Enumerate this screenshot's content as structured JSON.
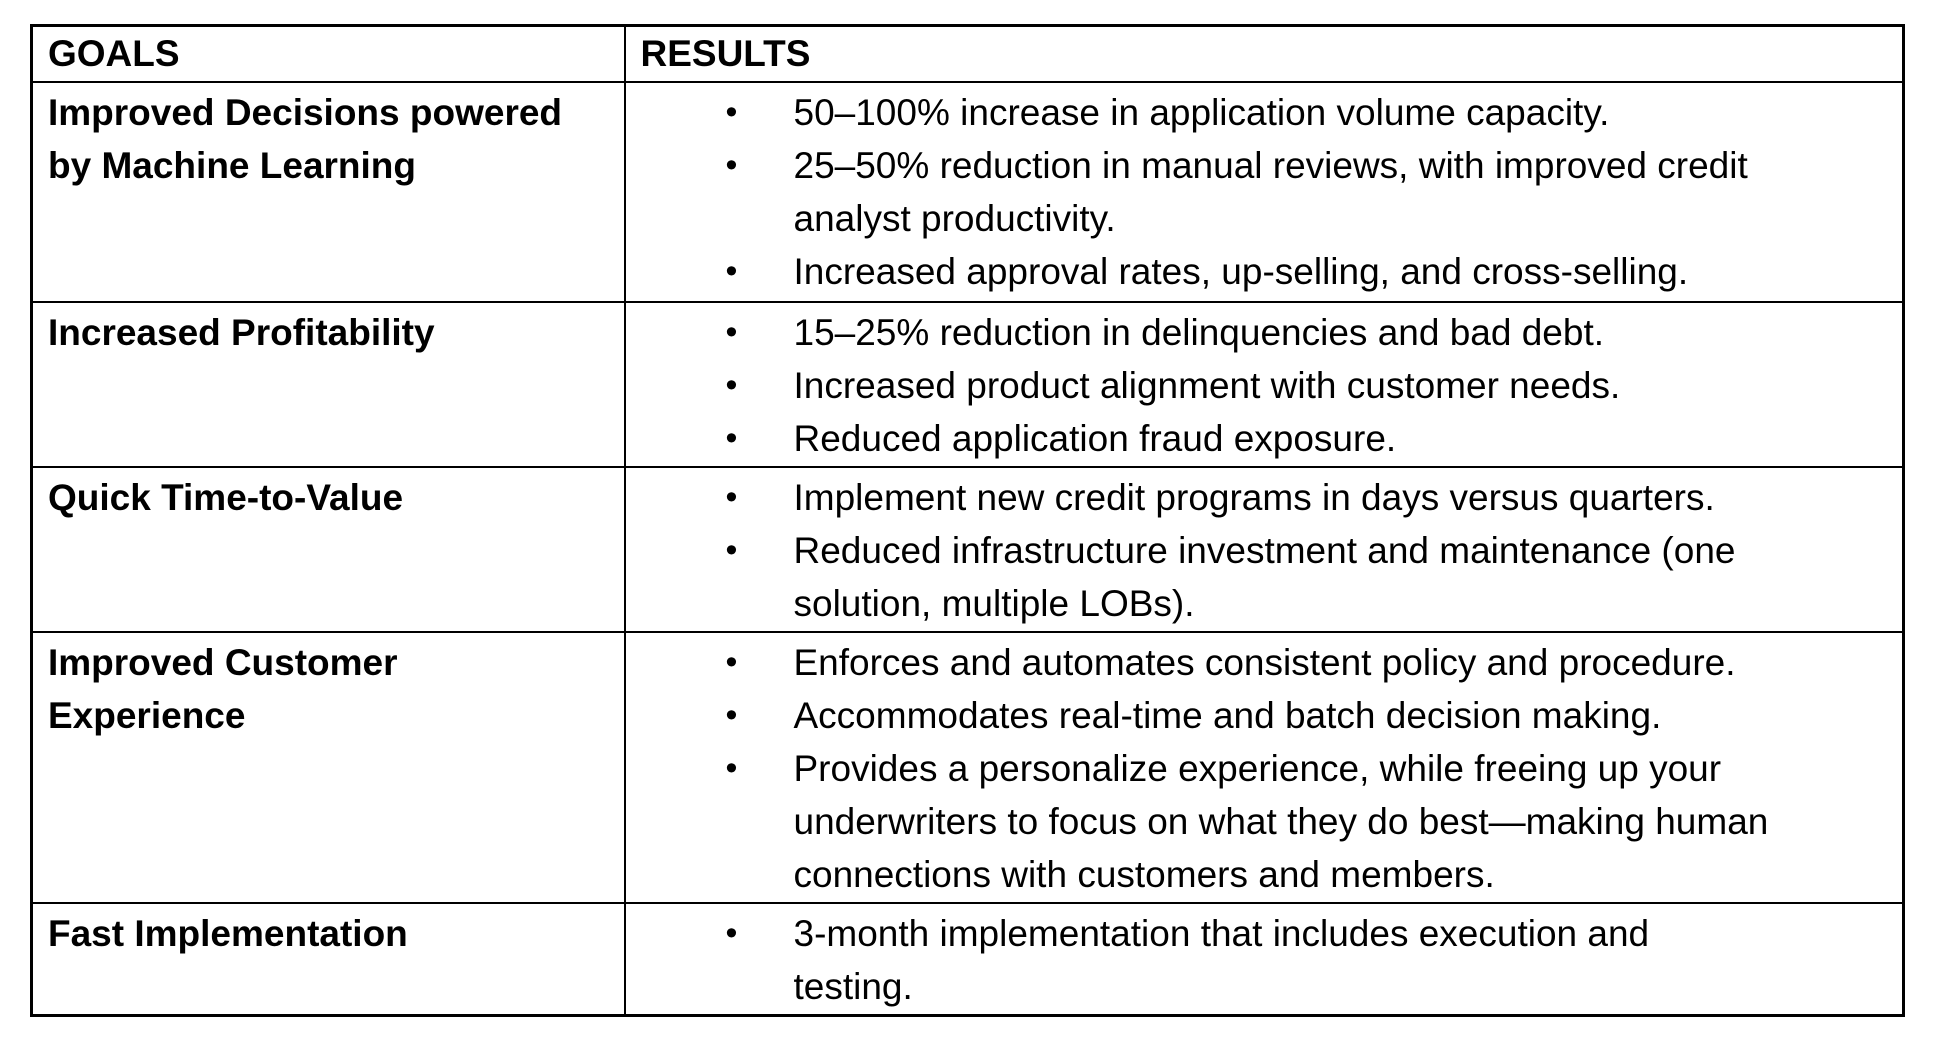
{
  "page": {
    "background": "#ffffff"
  },
  "table": {
    "border_color": "#000000",
    "text_color": "#000000",
    "bullet_glyph": "•",
    "columns": [
      {
        "label": "GOALS"
      },
      {
        "label": "RESULTS"
      }
    ],
    "rows": [
      {
        "goal": "Improved Decisions powered\nby Machine Learning",
        "results": [
          "50–100% increase in application volume capacity.",
          "25–50% reduction in manual reviews, with improved credit\nanalyst productivity.",
          "Increased approval rates, up-selling, and cross-selling."
        ]
      },
      {
        "goal": "Increased Profitability",
        "results": [
          "15–25% reduction in delinquencies and bad debt.",
          "Increased product alignment with customer needs.",
          "Reduced application fraud exposure."
        ]
      },
      {
        "goal": "Quick Time-to-Value",
        "results": [
          "Implement new credit programs in days versus quarters.",
          "Reduced infrastructure investment and maintenance (one\nsolution, multiple LOBs)."
        ]
      },
      {
        "goal": "Improved Customer\nExperience",
        "results": [
          "Enforces and automates consistent policy and procedure.",
          "Accommodates real-time and batch decision making.",
          "Provides a personalize experience, while freeing up your\nunderwriters to focus on what they do best—making human\nconnections with customers and members."
        ]
      },
      {
        "goal": "Fast Implementation",
        "results": [
          "3-month implementation that includes execution and\ntesting."
        ]
      }
    ]
  }
}
